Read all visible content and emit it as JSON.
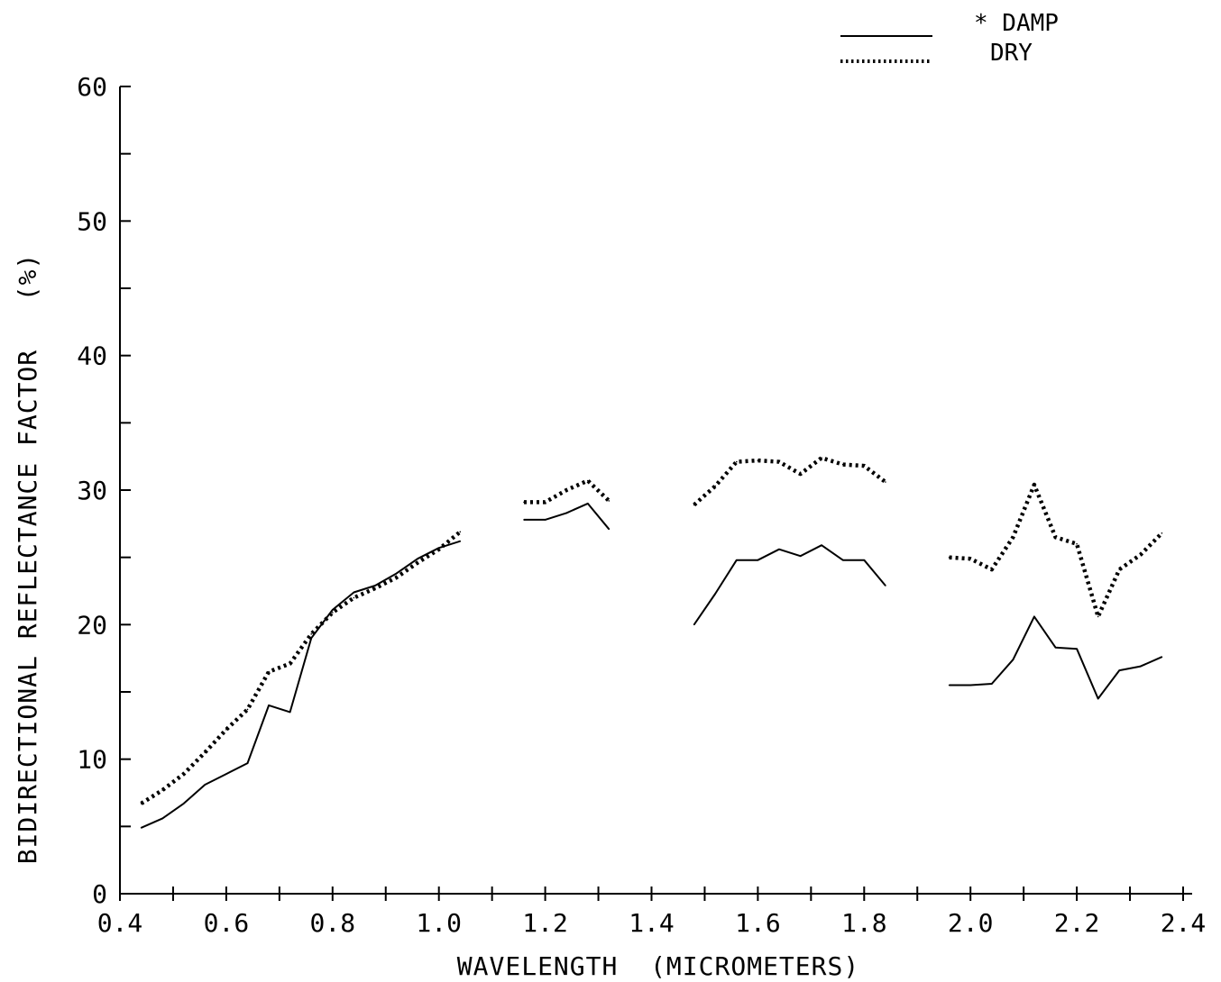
{
  "chart_data": {
    "type": "line",
    "title": "",
    "xlabel": "WAVELENGTH  (MICROMETERS)",
    "ylabel": "BIDIRECTIONAL REFLECTANCE FACTOR   (%)",
    "xlim": [
      0.4,
      2.4
    ],
    "ylim": [
      0,
      60
    ],
    "x_major_ticks": [
      0.4,
      0.6,
      0.8,
      1.0,
      1.2,
      1.4,
      1.6,
      1.8,
      2.0,
      2.2,
      2.4
    ],
    "x_tick_labels": [
      "0.4",
      "0.6",
      "0.8",
      "1.0",
      "1.2",
      "1.4",
      "1.6",
      "1.8",
      "2.0",
      "2.2",
      "2.4"
    ],
    "x_minor_step": 0.1,
    "y_major_ticks": [
      0,
      10,
      20,
      30,
      40,
      50,
      60
    ],
    "y_tick_labels": [
      "0",
      "10",
      "20",
      "30",
      "40",
      "50",
      "60"
    ],
    "y_minor_step": 5,
    "grid": false,
    "legend_position": "top-right",
    "series": [
      {
        "name": "* DAMP",
        "style": "solid",
        "color": "#000000",
        "segments": [
          [
            [
              0.44,
              4.9
            ],
            [
              0.48,
              5.6
            ],
            [
              0.52,
              6.7
            ],
            [
              0.56,
              8.1
            ],
            [
              0.6,
              8.9
            ],
            [
              0.64,
              9.7
            ],
            [
              0.68,
              14.0
            ],
            [
              0.72,
              13.5
            ],
            [
              0.76,
              19.0
            ],
            [
              0.8,
              21.1
            ],
            [
              0.84,
              22.4
            ],
            [
              0.88,
              22.9
            ],
            [
              0.92,
              23.8
            ],
            [
              0.96,
              24.9
            ],
            [
              1.0,
              25.7
            ],
            [
              1.04,
              26.2
            ]
          ],
          [
            [
              1.16,
              27.8
            ],
            [
              1.2,
              27.8
            ],
            [
              1.24,
              28.3
            ],
            [
              1.28,
              29.0
            ],
            [
              1.32,
              27.1
            ]
          ],
          [
            [
              1.48,
              20.0
            ],
            [
              1.52,
              22.3
            ],
            [
              1.56,
              24.8
            ],
            [
              1.6,
              24.8
            ],
            [
              1.64,
              25.6
            ],
            [
              1.68,
              25.1
            ],
            [
              1.72,
              25.9
            ],
            [
              1.76,
              24.8
            ],
            [
              1.8,
              24.8
            ],
            [
              1.84,
              22.9
            ]
          ],
          [
            [
              1.96,
              15.5
            ],
            [
              2.0,
              15.5
            ],
            [
              2.04,
              15.6
            ],
            [
              2.08,
              17.4
            ],
            [
              2.12,
              20.6
            ],
            [
              2.16,
              18.3
            ],
            [
              2.2,
              18.2
            ],
            [
              2.24,
              14.5
            ],
            [
              2.28,
              16.6
            ],
            [
              2.32,
              16.9
            ],
            [
              2.36,
              17.6
            ]
          ]
        ]
      },
      {
        "name": "DRY",
        "style": "dotted",
        "color": "#000000",
        "segments": [
          [
            [
              0.44,
              6.7
            ],
            [
              0.48,
              7.7
            ],
            [
              0.52,
              8.9
            ],
            [
              0.56,
              10.5
            ],
            [
              0.6,
              12.2
            ],
            [
              0.64,
              13.7
            ],
            [
              0.68,
              16.5
            ],
            [
              0.72,
              17.1
            ],
            [
              0.76,
              19.3
            ],
            [
              0.8,
              20.9
            ],
            [
              0.84,
              22.0
            ],
            [
              0.88,
              22.7
            ],
            [
              0.92,
              23.5
            ],
            [
              0.96,
              24.6
            ],
            [
              1.0,
              25.6
            ],
            [
              1.04,
              26.9
            ]
          ],
          [
            [
              1.16,
              29.1
            ],
            [
              1.2,
              29.1
            ],
            [
              1.24,
              30.0
            ],
            [
              1.28,
              30.7
            ],
            [
              1.32,
              29.2
            ]
          ],
          [
            [
              1.48,
              28.9
            ],
            [
              1.52,
              30.3
            ],
            [
              1.56,
              32.1
            ],
            [
              1.6,
              32.2
            ],
            [
              1.64,
              32.1
            ],
            [
              1.68,
              31.2
            ],
            [
              1.72,
              32.4
            ],
            [
              1.76,
              31.9
            ],
            [
              1.8,
              31.8
            ],
            [
              1.84,
              30.6
            ]
          ],
          [
            [
              1.96,
              25.0
            ],
            [
              2.0,
              24.9
            ],
            [
              2.04,
              24.1
            ],
            [
              2.08,
              26.5
            ],
            [
              2.12,
              30.4
            ],
            [
              2.16,
              26.5
            ],
            [
              2.2,
              26.0
            ],
            [
              2.24,
              20.6
            ],
            [
              2.28,
              24.1
            ],
            [
              2.32,
              25.2
            ],
            [
              2.36,
              26.8
            ]
          ]
        ]
      }
    ]
  }
}
